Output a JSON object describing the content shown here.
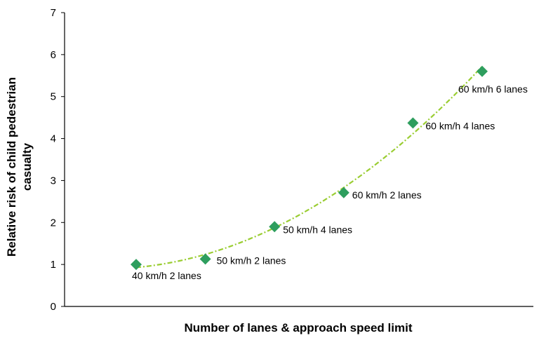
{
  "chart_data": {
    "type": "scatter",
    "title": "",
    "xlabel": "Number of lanes & approach speed limit",
    "ylabel_lines": [
      "Relative risk of child pedestrian",
      "casualty"
    ],
    "ylim": [
      0,
      7
    ],
    "yticks": [
      "0",
      "1",
      "2",
      "3",
      "4",
      "5",
      "6",
      "7"
    ],
    "grid": false,
    "legend": "none",
    "points": [
      {
        "label": "40 km/h 2 lanes",
        "y": 1.0
      },
      {
        "label": "50 km/h 2 lanes",
        "y": 1.13
      },
      {
        "label": "50 km/h 4 lanes",
        "y": 1.9
      },
      {
        "label": "60 km/h 2 lanes",
        "y": 2.71
      },
      {
        "label": "60 km/h 4 lanes",
        "y": 4.37
      },
      {
        "label": "60 km/h 6 lanes",
        "y": 5.6
      }
    ],
    "trendline": {
      "kind": "polynomial",
      "style": "dashed",
      "color": "#9acd32"
    },
    "marker_color": "#2e9e5e"
  }
}
